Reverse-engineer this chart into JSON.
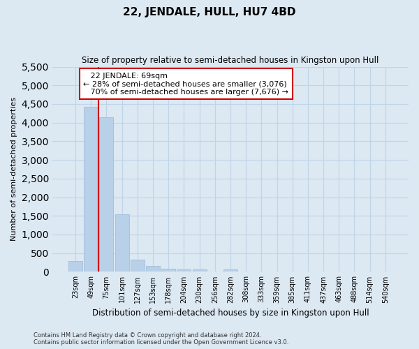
{
  "title": "22, JENDALE, HULL, HU7 4BD",
  "subtitle": "Size of property relative to semi-detached houses in Kingston upon Hull",
  "xlabel": "Distribution of semi-detached houses by size in Kingston upon Hull",
  "ylabel": "Number of semi-detached properties",
  "categories": [
    "23sqm",
    "49sqm",
    "75sqm",
    "101sqm",
    "127sqm",
    "153sqm",
    "178sqm",
    "204sqm",
    "230sqm",
    "256sqm",
    "282sqm",
    "308sqm",
    "333sqm",
    "359sqm",
    "385sqm",
    "411sqm",
    "437sqm",
    "463sqm",
    "488sqm",
    "514sqm",
    "540sqm"
  ],
  "values": [
    290,
    4420,
    4150,
    1540,
    330,
    150,
    80,
    65,
    55,
    0,
    55,
    0,
    0,
    0,
    0,
    0,
    0,
    0,
    0,
    0,
    0
  ],
  "bar_color": "#b8d0e8",
  "bar_edge_color": "#9ab8d8",
  "grid_color": "#c0d4e8",
  "background_color": "#dce8f2",
  "property_line_x": 1.5,
  "property_label": "22 JENDALE: 69sqm",
  "pct_smaller": "28% of semi-detached houses are smaller (3,076)",
  "pct_larger": "70% of semi-detached houses are larger (7,676)",
  "annotation_box_color": "#ffffff",
  "annotation_border_color": "#cc0000",
  "vline_color": "#cc0000",
  "ylim": [
    0,
    5500
  ],
  "yticks": [
    0,
    500,
    1000,
    1500,
    2000,
    2500,
    3000,
    3500,
    4000,
    4500,
    5000,
    5500
  ],
  "footnote1": "Contains HM Land Registry data © Crown copyright and database right 2024.",
  "footnote2": "Contains public sector information licensed under the Open Government Licence v3.0.",
  "title_fontsize": 11,
  "subtitle_fontsize": 8.5,
  "ylabel_fontsize": 8,
  "xlabel_fontsize": 8.5,
  "tick_fontsize": 7,
  "footnote_fontsize": 6,
  "annot_fontsize": 8
}
